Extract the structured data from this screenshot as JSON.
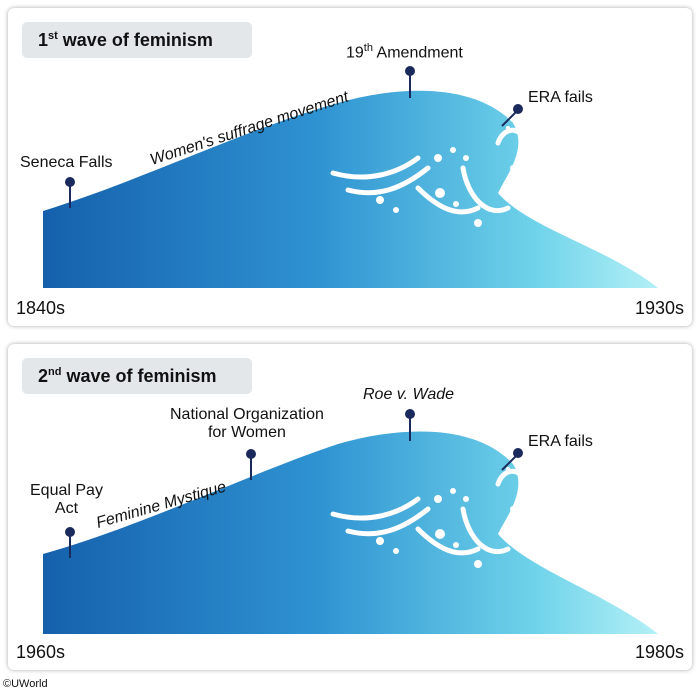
{
  "panels": [
    {
      "title_prefix": "1",
      "title_sup": "st",
      "title_rest": " wave of feminism",
      "start_label": "1840s",
      "end_label": "1930s",
      "events": {
        "seneca": "Seneca Falls",
        "suffrage": "Women's suffrage movement",
        "amend_prefix": "19",
        "amend_sup": "th",
        "amend_rest": " Amendment",
        "era_fails": "ERA fails"
      }
    },
    {
      "title_prefix": "2",
      "title_sup": "nd",
      "title_rest": " wave of feminism",
      "start_label": "1960s",
      "end_label": "1980s",
      "events": {
        "equal_pay_1": "Equal Pay",
        "equal_pay_2": "Act",
        "mystique": "Feminine Mystique",
        "now_1": "National Organization",
        "now_2": "for Women",
        "roe": "Roe v. Wade",
        "era_fails": "ERA fails"
      }
    }
  ],
  "copyright": "©UWorld",
  "colors": {
    "wave_dark": "#1560ac",
    "wave_light": "#8fe6f0",
    "marker": "#1b2a5c"
  }
}
